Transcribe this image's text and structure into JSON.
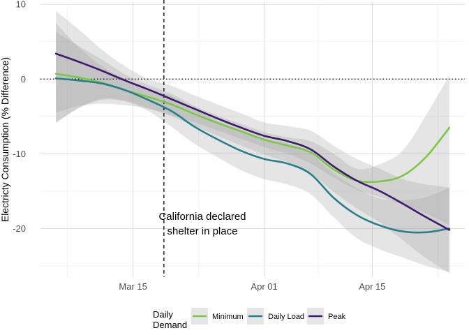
{
  "chart_data": {
    "type": "line",
    "title": "",
    "xlabel": "",
    "ylabel": "Electricty Consumption (% Difference)",
    "x_ticks": [
      "Mar 15",
      "Apr 01",
      "Apr 15"
    ],
    "y_ticks": [
      10,
      0,
      -10,
      -20
    ],
    "ylim": [
      -26.5,
      10.3
    ],
    "xlim": [
      "2020-03-03",
      "2020-04-27"
    ],
    "grid": true,
    "reference_lines": [
      {
        "type": "horizontal",
        "style": "dotted",
        "y": 0
      },
      {
        "type": "vertical",
        "style": "dashed",
        "x": "2020-03-19"
      }
    ],
    "annotation": {
      "lines": [
        "California declared",
        "shelter in place"
      ],
      "x": "2020-03-27",
      "y": -20.5
    },
    "legend": {
      "title_lines": [
        "Daily",
        "Demand"
      ],
      "position": "bottom"
    },
    "x": [
      "2020-03-05",
      "2020-03-08",
      "2020-03-11",
      "2020-03-14",
      "2020-03-17",
      "2020-03-20",
      "2020-03-23",
      "2020-03-26",
      "2020-03-29",
      "2020-04-01",
      "2020-04-04",
      "2020-04-07",
      "2020-04-10",
      "2020-04-13",
      "2020-04-16",
      "2020-04-19",
      "2020-04-22",
      "2020-04-25"
    ],
    "series": [
      {
        "name": "Minimum",
        "color": "#7ac943",
        "values": [
          0.7,
          0.2,
          -0.5,
          -1.5,
          -2.4,
          -3.4,
          -4.7,
          -5.9,
          -7.0,
          -8.1,
          -8.9,
          -9.8,
          -12.1,
          -13.6,
          -13.7,
          -12.9,
          -10.4,
          -6.5
        ],
        "lower": [
          -4.5,
          -3.6,
          -3.3,
          -3.5,
          -4.0,
          -4.8,
          -5.8,
          -6.9,
          -8.0,
          -9.1,
          -10.0,
          -11.3,
          -13.2,
          -14.8,
          -15.8,
          -16.8,
          -18.0,
          -19.5
        ],
        "upper": [
          6.3,
          4.4,
          2.6,
          0.6,
          -0.8,
          -2.0,
          -3.6,
          -4.9,
          -6.0,
          -7.1,
          -7.8,
          -8.3,
          -10.0,
          -12.0,
          -11.4,
          -9.5,
          -4.8,
          0.5
        ]
      },
      {
        "name": "Daily Load",
        "color": "#277f8e",
        "values": [
          0.1,
          -0.2,
          -0.6,
          -1.5,
          -2.8,
          -4.3,
          -6.4,
          -8.1,
          -9.6,
          -10.7,
          -11.3,
          -12.7,
          -15.9,
          -18.2,
          -19.6,
          -20.4,
          -20.5,
          -20.0
        ],
        "lower": [
          -5.8,
          -3.9,
          -2.8,
          -3.0,
          -4.3,
          -6.4,
          -8.7,
          -10.5,
          -12.2,
          -13.4,
          -14.1,
          -15.4,
          -18.5,
          -21.3,
          -22.8,
          -23.9,
          -25.0,
          -25.8
        ],
        "upper": [
          7.5,
          4.2,
          1.7,
          0.0,
          -1.3,
          -2.3,
          -4.0,
          -5.7,
          -7.1,
          -8.1,
          -8.6,
          -10.0,
          -12.6,
          -14.6,
          -16.0,
          -16.2,
          -15.8,
          -14.5
        ]
      },
      {
        "name": "Peak",
        "color": "#3f1a6e",
        "values": [
          3.4,
          2.3,
          1.1,
          -0.2,
          -1.4,
          -2.7,
          -4.0,
          -5.3,
          -6.5,
          -7.6,
          -8.3,
          -9.4,
          -11.7,
          -13.6,
          -15.0,
          -16.7,
          -18.5,
          -20.2
        ],
        "lower": [
          -5.9,
          -3.8,
          -2.6,
          -2.9,
          -3.9,
          -5.0,
          -6.3,
          -7.6,
          -8.9,
          -10.1,
          -11.1,
          -12.6,
          -15.1,
          -17.3,
          -19.2,
          -21.6,
          -24.0,
          -26.0
        ],
        "upper": [
          9.1,
          6.6,
          3.9,
          1.7,
          0.0,
          -0.9,
          -2.2,
          -3.4,
          -4.6,
          -5.8,
          -6.3,
          -6.9,
          -8.9,
          -10.7,
          -12.0,
          -13.4,
          -14.1,
          -14.5
        ]
      }
    ]
  }
}
